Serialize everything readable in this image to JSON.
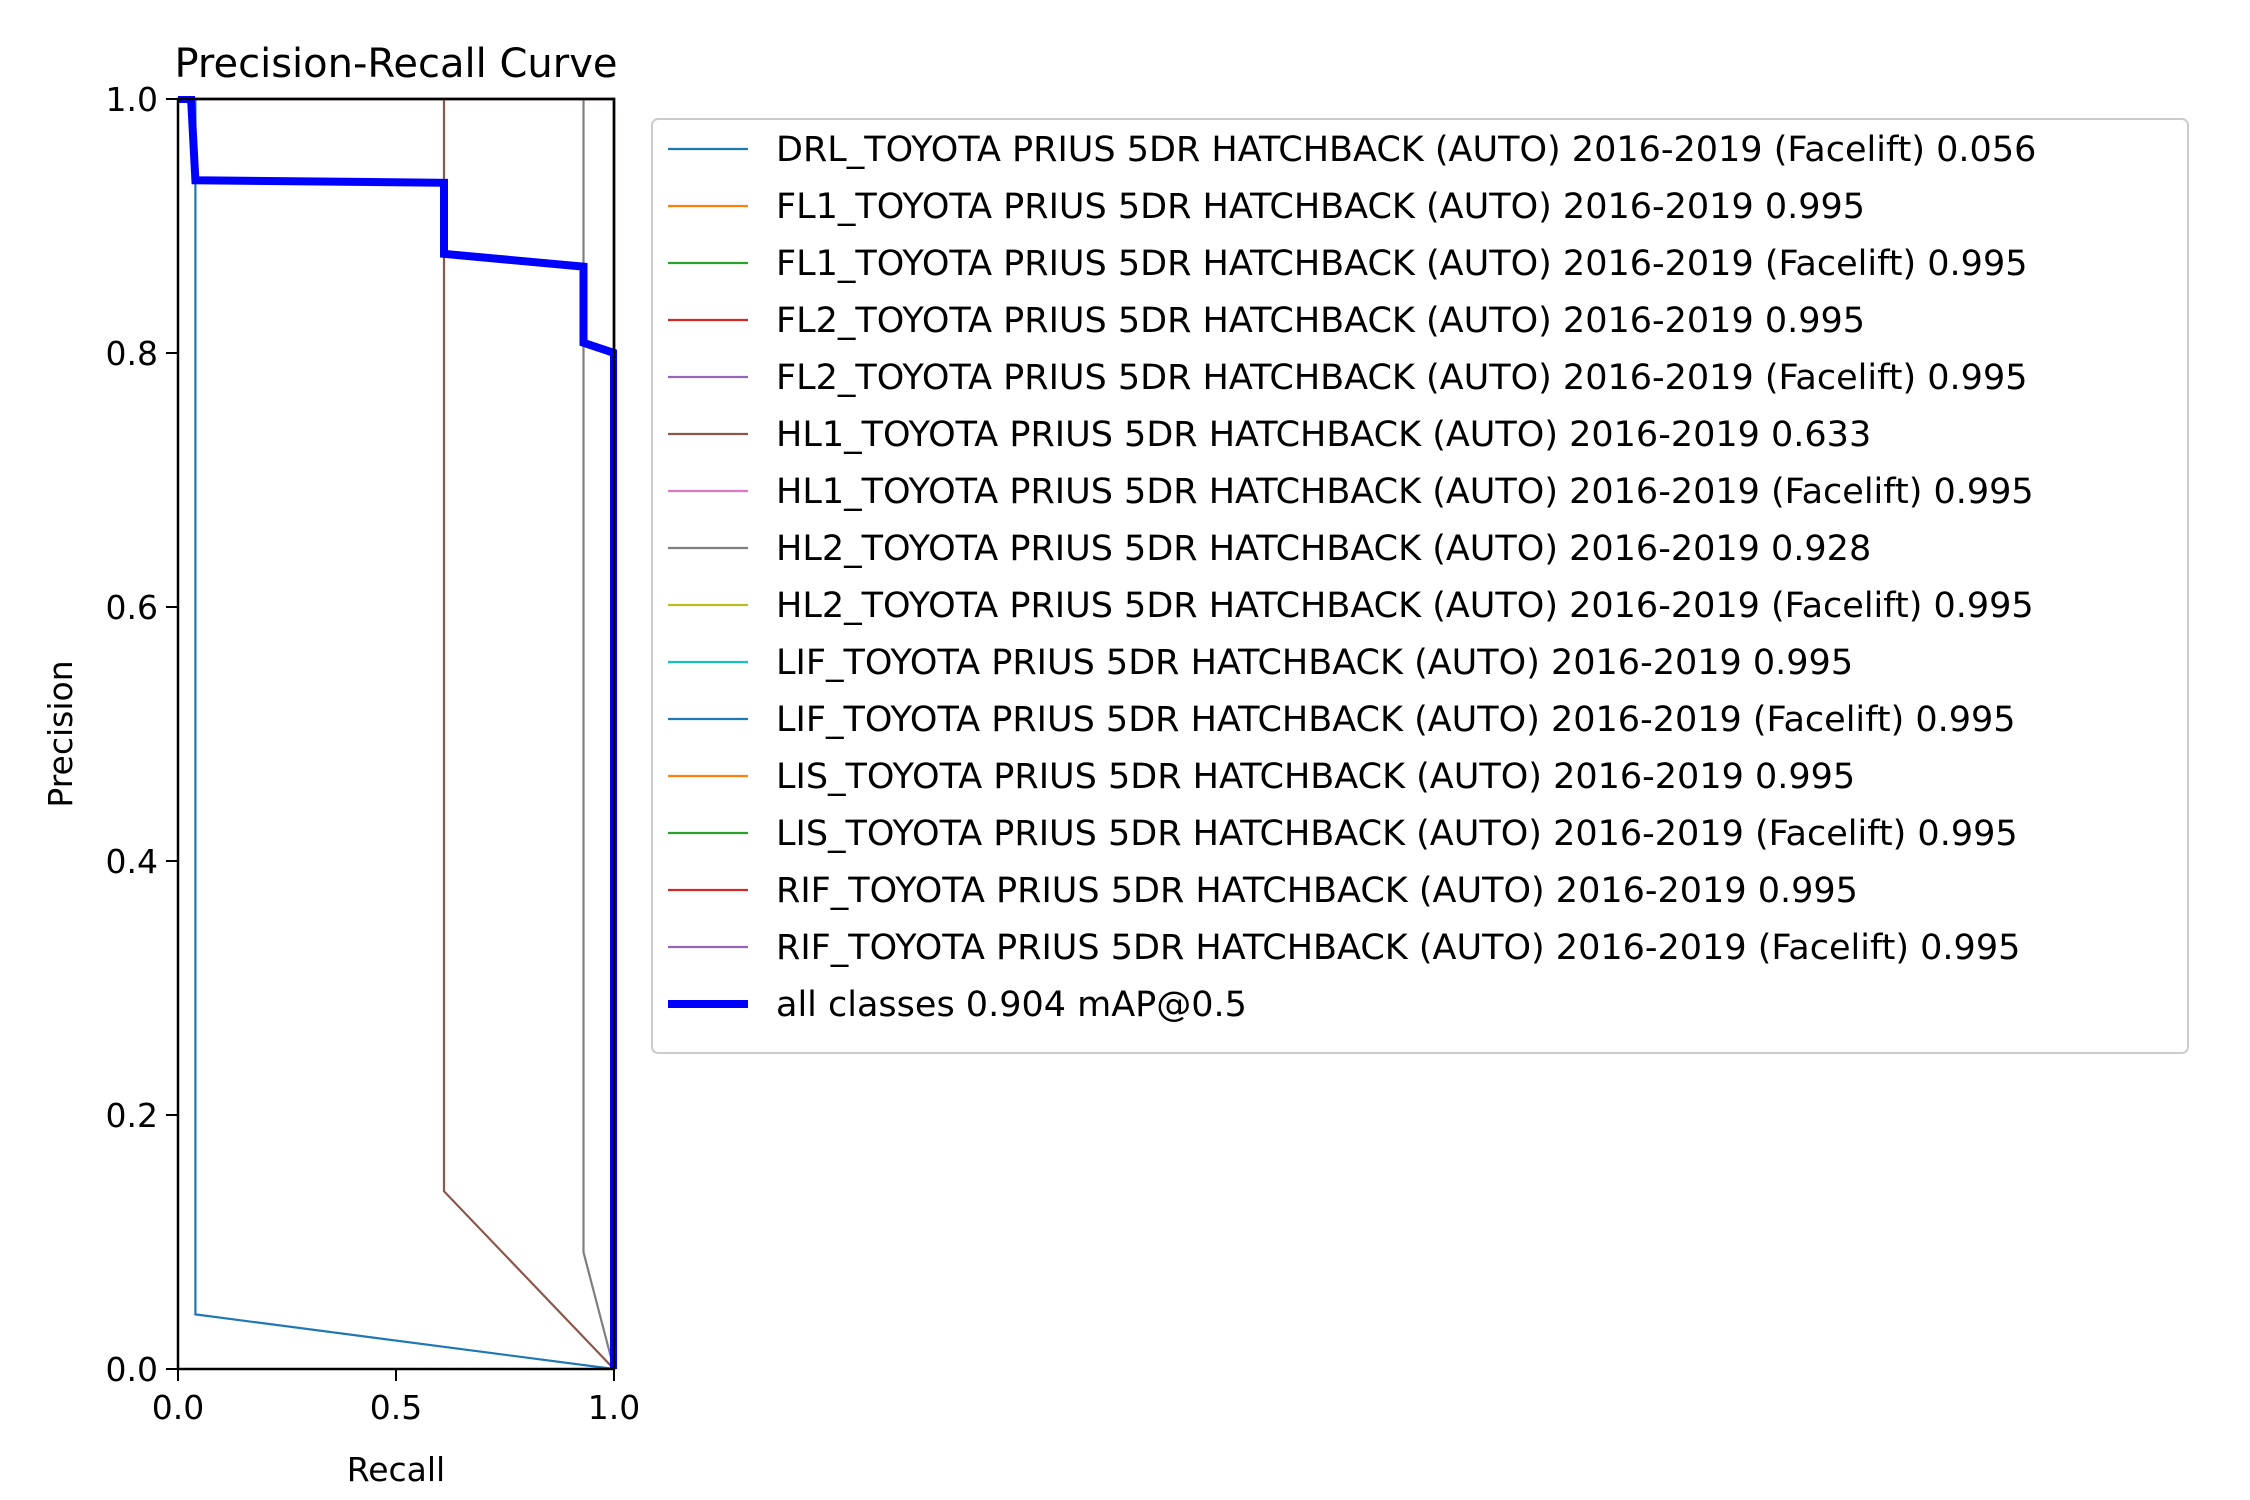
{
  "chart_data": {
    "type": "line",
    "title": "Precision-Recall Curve",
    "xlabel": "Recall",
    "ylabel": "Precision",
    "xlim": [
      0,
      1
    ],
    "ylim": [
      0,
      1
    ],
    "x_ticks": [
      "0.0",
      "0.5",
      "1.0"
    ],
    "y_ticks": [
      "0.0",
      "0.2",
      "0.4",
      "0.6",
      "0.8",
      "1.0"
    ],
    "grid": false,
    "legend_position": "outside-right",
    "series": [
      {
        "name": "DRL_TOYOTA PRIUS 5DR HATCHBACK (AUTO) 2016-2019 (Facelift) 0.056",
        "color": "#1f77b4",
        "width": "thin",
        "x": [
          0.0,
          0.04,
          0.04,
          0.04,
          1.0
        ],
        "y": [
          1.0,
          1.0,
          0.09,
          0.043,
          0.0
        ]
      },
      {
        "name": "FL1_TOYOTA PRIUS 5DR HATCHBACK (AUTO) 2016-2019 0.995",
        "color": "#ff7f0e",
        "width": "thin",
        "x": [
          0.0,
          1.0,
          1.0
        ],
        "y": [
          1.0,
          1.0,
          0.0
        ]
      },
      {
        "name": "FL1_TOYOTA PRIUS 5DR HATCHBACK (AUTO) 2016-2019 (Facelift) 0.995",
        "color": "#2ca02c",
        "width": "thin",
        "x": [
          0.0,
          1.0,
          1.0
        ],
        "y": [
          1.0,
          1.0,
          0.0
        ]
      },
      {
        "name": "FL2_TOYOTA PRIUS 5DR HATCHBACK (AUTO) 2016-2019 0.995",
        "color": "#d62728",
        "width": "thin",
        "x": [
          0.0,
          1.0,
          1.0
        ],
        "y": [
          1.0,
          1.0,
          0.0
        ]
      },
      {
        "name": "FL2_TOYOTA PRIUS 5DR HATCHBACK (AUTO) 2016-2019 (Facelift) 0.995",
        "color": "#9467bd",
        "width": "thin",
        "x": [
          0.0,
          1.0,
          1.0
        ],
        "y": [
          1.0,
          1.0,
          0.0
        ]
      },
      {
        "name": "HL1_TOYOTA PRIUS 5DR HATCHBACK (AUTO) 2016-2019 0.633",
        "color": "#8c564b",
        "width": "thin",
        "x": [
          0.0,
          0.61,
          0.61,
          1.0
        ],
        "y": [
          1.0,
          1.0,
          0.14,
          0.0
        ]
      },
      {
        "name": "HL1_TOYOTA PRIUS 5DR HATCHBACK (AUTO) 2016-2019 (Facelift) 0.995",
        "color": "#e377c2",
        "width": "thin",
        "x": [
          0.0,
          1.0,
          1.0
        ],
        "y": [
          1.0,
          1.0,
          0.0
        ]
      },
      {
        "name": "HL2_TOYOTA PRIUS 5DR HATCHBACK (AUTO) 2016-2019 0.928",
        "color": "#7f7f7f",
        "width": "thin",
        "x": [
          0.0,
          0.93,
          0.93,
          1.0
        ],
        "y": [
          1.0,
          1.0,
          0.092,
          0.0
        ]
      },
      {
        "name": "HL2_TOYOTA PRIUS 5DR HATCHBACK (AUTO) 2016-2019 (Facelift) 0.995",
        "color": "#bcbd22",
        "width": "thin",
        "x": [
          0.0,
          1.0,
          1.0
        ],
        "y": [
          1.0,
          1.0,
          0.0
        ]
      },
      {
        "name": "LIF_TOYOTA PRIUS 5DR HATCHBACK (AUTO) 2016-2019 0.995",
        "color": "#17becf",
        "width": "thin",
        "x": [
          0.0,
          1.0,
          1.0
        ],
        "y": [
          1.0,
          1.0,
          0.0
        ]
      },
      {
        "name": "LIF_TOYOTA PRIUS 5DR HATCHBACK (AUTO) 2016-2019 (Facelift) 0.995",
        "color": "#1f77b4",
        "width": "thin",
        "x": [
          0.0,
          1.0,
          1.0
        ],
        "y": [
          1.0,
          1.0,
          0.0
        ]
      },
      {
        "name": "LIS_TOYOTA PRIUS 5DR HATCHBACK (AUTO) 2016-2019 0.995",
        "color": "#ff7f0e",
        "width": "thin",
        "x": [
          0.0,
          1.0,
          1.0
        ],
        "y": [
          1.0,
          1.0,
          0.0
        ]
      },
      {
        "name": "LIS_TOYOTA PRIUS 5DR HATCHBACK (AUTO) 2016-2019 (Facelift) 0.995",
        "color": "#2ca02c",
        "width": "thin",
        "x": [
          0.0,
          1.0,
          1.0
        ],
        "y": [
          1.0,
          1.0,
          0.0
        ]
      },
      {
        "name": "RIF_TOYOTA PRIUS 5DR HATCHBACK (AUTO) 2016-2019 0.995",
        "color": "#d62728",
        "width": "thin",
        "x": [
          0.0,
          1.0,
          1.0
        ],
        "y": [
          1.0,
          1.0,
          0.0
        ]
      },
      {
        "name": "RIF_TOYOTA PRIUS 5DR HATCHBACK (AUTO) 2016-2019 (Facelift) 0.995",
        "color": "#9467bd",
        "width": "thin",
        "x": [
          0.0,
          1.0,
          1.0
        ],
        "y": [
          1.0,
          1.0,
          0.0
        ]
      },
      {
        "name": "all classes 0.904 mAP@0.5",
        "color": "#0000ff",
        "width": "thick",
        "x": [
          0.0,
          0.03,
          0.04,
          0.61,
          0.61,
          0.93,
          0.93,
          1.0,
          1.0
        ],
        "y": [
          1.0,
          1.0,
          0.936,
          0.934,
          0.878,
          0.868,
          0.808,
          0.8,
          0.0
        ]
      }
    ]
  }
}
